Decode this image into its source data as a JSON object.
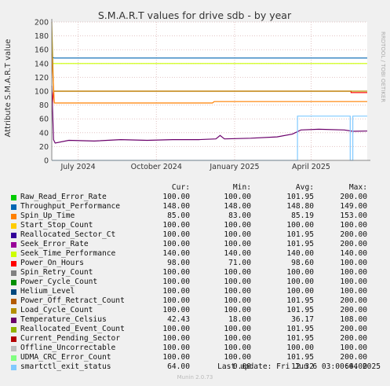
{
  "title": "S.M.A.R.T values for drive sdb - by year",
  "side_label": "RRDTOOL / TOBI OETIKER",
  "footer": {
    "last_update": "Last update: Fri Jun  6 03:00:04 2025",
    "munin": "Munin 2.0.73"
  },
  "legend_headers": {
    "cur": "Cur:",
    "min": "Min:",
    "avg": "Avg:",
    "max": "Max:"
  },
  "legend": [
    {
      "name": "Raw_Read_Error_Rate",
      "color": "#00cc00",
      "cur": "100.00",
      "min": "100.00",
      "avg": "101.95",
      "max": "200.00"
    },
    {
      "name": "Throughput_Performance",
      "color": "#0066b3",
      "cur": "148.00",
      "min": "148.00",
      "avg": "148.80",
      "max": "149.00"
    },
    {
      "name": "Spin_Up_Time",
      "color": "#ff8000",
      "cur": "85.00",
      "min": "83.00",
      "avg": "85.19",
      "max": "153.00"
    },
    {
      "name": "Start_Stop_Count",
      "color": "#ffcc00",
      "cur": "100.00",
      "min": "100.00",
      "avg": "100.00",
      "max": "100.00"
    },
    {
      "name": "Reallocated_Sector_Ct",
      "color": "#330099",
      "cur": "100.00",
      "min": "100.00",
      "avg": "101.95",
      "max": "200.00"
    },
    {
      "name": "Seek_Error_Rate",
      "color": "#990099",
      "cur": "100.00",
      "min": "100.00",
      "avg": "101.95",
      "max": "200.00"
    },
    {
      "name": "Seek_Time_Performance",
      "color": "#ccff00",
      "cur": "140.00",
      "min": "140.00",
      "avg": "140.00",
      "max": "140.00"
    },
    {
      "name": "Power_On_Hours",
      "color": "#ff0000",
      "cur": "98.00",
      "min": "71.00",
      "avg": "98.60",
      "max": "100.00"
    },
    {
      "name": "Spin_Retry_Count",
      "color": "#808080",
      "cur": "100.00",
      "min": "100.00",
      "avg": "100.00",
      "max": "100.00"
    },
    {
      "name": "Power_Cycle_Count",
      "color": "#008f00",
      "cur": "100.00",
      "min": "100.00",
      "avg": "100.00",
      "max": "100.00"
    },
    {
      "name": "Helium_Level",
      "color": "#00487d",
      "cur": "100.00",
      "min": "100.00",
      "avg": "100.00",
      "max": "100.00"
    },
    {
      "name": "Power_Off_Retract_Count",
      "color": "#b35a00",
      "cur": "100.00",
      "min": "100.00",
      "avg": "101.95",
      "max": "200.00"
    },
    {
      "name": "Load_Cycle_Count",
      "color": "#b38f00",
      "cur": "100.00",
      "min": "100.00",
      "avg": "101.95",
      "max": "200.00"
    },
    {
      "name": "Temperature_Celsius",
      "color": "#6b006b",
      "cur": "42.43",
      "min": "18.00",
      "avg": "36.17",
      "max": "108.00"
    },
    {
      "name": "Reallocated_Event_Count",
      "color": "#8fb300",
      "cur": "100.00",
      "min": "100.00",
      "avg": "101.95",
      "max": "200.00"
    },
    {
      "name": "Current_Pending_Sector",
      "color": "#b30000",
      "cur": "100.00",
      "min": "100.00",
      "avg": "101.95",
      "max": "200.00"
    },
    {
      "name": "Offline_Uncorrectable",
      "color": "#bebebe",
      "cur": "100.00",
      "min": "100.00",
      "avg": "100.00",
      "max": "100.00"
    },
    {
      "name": "UDMA_CRC_Error_Count",
      "color": "#80ff80",
      "cur": "100.00",
      "min": "100.00",
      "avg": "101.95",
      "max": "200.00"
    },
    {
      "name": "smartctl_exit_status",
      "color": "#80c9ff",
      "cur": "64.00",
      "min": "0.00",
      "avg": "12.32",
      "max": "64.00"
    }
  ],
  "chart_data": {
    "type": "line",
    "title": "S.M.A.R.T values for drive sdb - by year",
    "ylabel": "Attribute S.M.A.R.T value",
    "ylim": [
      0,
      200
    ],
    "yticks": [
      0,
      20,
      40,
      60,
      80,
      100,
      120,
      140,
      160,
      180,
      200
    ],
    "xlim": [
      "2024-05-31",
      "2025-06-06"
    ],
    "xticks": [
      {
        "label": "July 2024",
        "date": "2024-07-01"
      },
      {
        "label": "October 2024",
        "date": "2024-10-01"
      },
      {
        "label": "January 2025",
        "date": "2025-01-01"
      },
      {
        "label": "April 2025",
        "date": "2025-04-01"
      }
    ],
    "grid": true,
    "series": [
      {
        "name": "Throughput_Performance",
        "color": "#0066b3",
        "points": [
          [
            "2024-05-31",
            149
          ],
          [
            "2024-06-03",
            148
          ],
          [
            "2025-06-06",
            148
          ]
        ]
      },
      {
        "name": "Seek_Time_Performance",
        "color": "#ccff00",
        "points": [
          [
            "2024-05-31",
            140
          ],
          [
            "2025-06-06",
            140
          ]
        ]
      },
      {
        "name": "Power_On_Hours",
        "color": "#ff0000",
        "points": [
          [
            "2024-05-31",
            71
          ],
          [
            "2024-06-02",
            100
          ],
          [
            "2025-05-18",
            100
          ],
          [
            "2025-05-18",
            98
          ],
          [
            "2025-06-06",
            98
          ]
        ]
      },
      {
        "name": "Load_Cycle_Count",
        "color": "#b38f00",
        "points": [
          [
            "2024-05-31",
            200
          ],
          [
            "2024-06-02",
            100
          ],
          [
            "2025-06-06",
            100
          ]
        ]
      },
      {
        "name": "Spin_Up_Time",
        "color": "#ff8000",
        "points": [
          [
            "2024-05-31",
            153
          ],
          [
            "2024-06-03",
            83
          ],
          [
            "2024-12-06",
            83
          ],
          [
            "2024-12-08",
            85
          ],
          [
            "2025-06-06",
            85
          ]
        ]
      },
      {
        "name": "Temperature_Celsius",
        "color": "#6b006b",
        "points": [
          [
            "2024-05-31",
            108
          ],
          [
            "2024-06-02",
            30
          ],
          [
            "2024-06-04",
            25
          ],
          [
            "2024-06-20",
            29
          ],
          [
            "2024-07-20",
            28
          ],
          [
            "2024-08-20",
            30
          ],
          [
            "2024-09-20",
            29
          ],
          [
            "2024-10-20",
            30
          ],
          [
            "2024-11-20",
            30
          ],
          [
            "2024-12-10",
            31
          ],
          [
            "2024-12-15",
            36
          ],
          [
            "2024-12-20",
            31
          ],
          [
            "2025-01-20",
            32
          ],
          [
            "2025-02-20",
            34
          ],
          [
            "2025-03-10",
            38
          ],
          [
            "2025-03-20",
            44
          ],
          [
            "2025-04-10",
            45
          ],
          [
            "2025-05-10",
            44
          ],
          [
            "2025-05-20",
            42
          ],
          [
            "2025-06-06",
            42.43
          ]
        ]
      },
      {
        "name": "smartctl_exit_status",
        "color": "#80c9ff",
        "points": [
          [
            "2024-05-31",
            0
          ],
          [
            "2025-03-16",
            0
          ],
          [
            "2025-03-16",
            64
          ],
          [
            "2025-05-17",
            64
          ],
          [
            "2025-05-17",
            0
          ],
          [
            "2025-05-20",
            0
          ],
          [
            "2025-05-20",
            64
          ],
          [
            "2025-06-06",
            64
          ]
        ]
      }
    ]
  }
}
